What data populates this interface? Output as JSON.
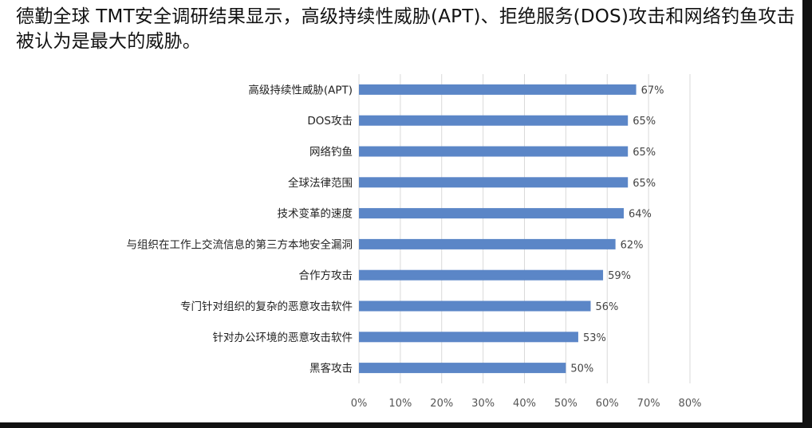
{
  "headline": "德勤全球 TMT安全调研结果显示，高级持续性威胁(APT)、拒绝服务(DOS)攻击和网络钓鱼攻击被认为是最大的威胁。",
  "colors": {
    "bar": "#5b86c7",
    "grid": "#d9d9d9",
    "background": "#ffffff"
  },
  "chart_data": {
    "type": "bar",
    "orientation": "horizontal",
    "categories": [
      "高级持续性威胁(APT)",
      "DOS攻击",
      "网络钓鱼",
      "全球法律范围",
      "技术变革的速度",
      "与组织在工作上交流信息的第三方本地安全漏洞",
      "合作方攻击",
      "专门针对组织的复杂的恶意攻击软件",
      "针对办公环境的恶意攻击软件",
      "黑客攻击"
    ],
    "values": [
      67,
      65,
      65,
      65,
      64,
      62,
      59,
      56,
      53,
      50
    ],
    "value_labels": [
      "67%",
      "65%",
      "65%",
      "65%",
      "64%",
      "62%",
      "59%",
      "56%",
      "53%",
      "50%"
    ],
    "x_ticks": [
      "0%",
      "10%",
      "20%",
      "30%",
      "40%",
      "50%",
      "60%",
      "70%",
      "80%"
    ],
    "xlim": [
      0,
      80
    ],
    "grid": true,
    "legend": "none"
  }
}
